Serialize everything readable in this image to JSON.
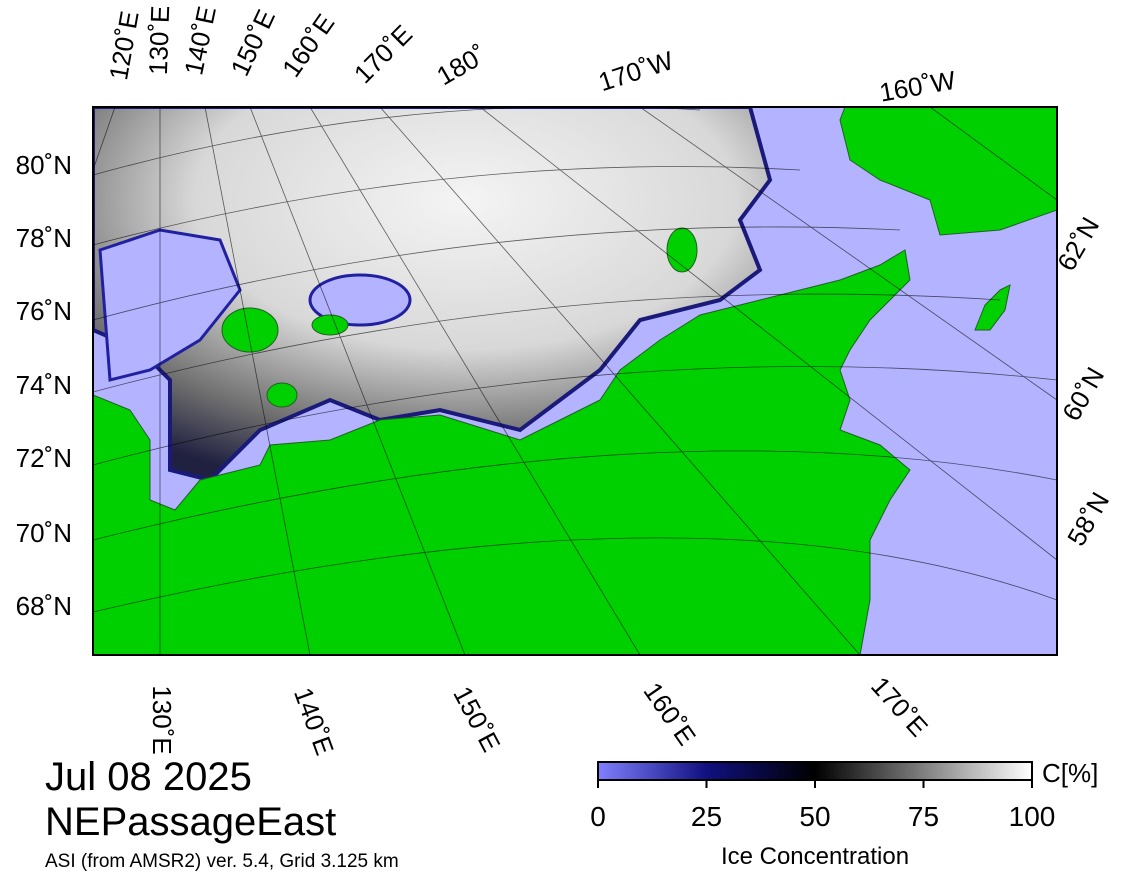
{
  "map": {
    "date": "Jul 08 2025",
    "region": "NEPassageEast",
    "source": "ASI (from AMSR2) ver. 5.4,  Grid 3.125 km",
    "lon_labels_top": [
      "120˚E",
      "130˚E",
      "140˚E",
      "150˚E",
      "160˚E",
      "170˚E",
      "180˚",
      "170˚W",
      "160˚W"
    ],
    "lat_labels_left": [
      "80˚N",
      "78˚N",
      "76˚N",
      "74˚N",
      "72˚N",
      "70˚N",
      "68˚N"
    ],
    "lat_labels_right": [
      "62˚N",
      "60˚N",
      "58˚N"
    ],
    "lon_labels_bottom": [
      "130˚E",
      "140˚E",
      "150˚E",
      "160˚E",
      "170˚E"
    ]
  },
  "colorbar": {
    "label": "Ice Concentration",
    "unit": "C[%]",
    "lim": [
      0,
      100
    ],
    "ticks": [
      0,
      25,
      50,
      75,
      100
    ]
  }
}
